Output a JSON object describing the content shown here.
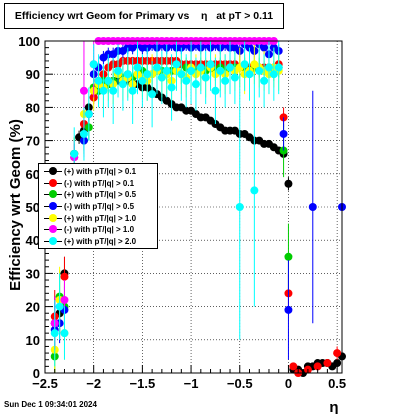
{
  "title": {
    "part1": "Efficiency wrt Geom for Primary vs",
    "symbol": "η",
    "part2": "at pT > 0.11"
  },
  "timestamp": "Sun Dec  1 09:34:01 2024",
  "chart_data": {
    "type": "scatter",
    "title": "Efficiency wrt Geom for Primary vs η at pT > 0.11",
    "xlabel": "η",
    "ylabel": "Efficiency wrt Geom (%)",
    "xlim": [
      -2.5,
      0.55
    ],
    "ylim": [
      0,
      100
    ],
    "xticks": [
      -2.5,
      -2,
      -1.5,
      -1,
      -0.5,
      0,
      0.5
    ],
    "xtick_labels": [
      "−2.5",
      "−2",
      "−1.5",
      "−1",
      "−0.5",
      "0",
      "0.5"
    ],
    "yticks": [
      0,
      10,
      20,
      30,
      40,
      50,
      60,
      70,
      80,
      90,
      100
    ],
    "ytick_labels": [
      "0",
      "10",
      "20",
      "30",
      "40",
      "50",
      "60",
      "70",
      "80",
      "90",
      "100"
    ],
    "grid": true,
    "legend_position": "middle-left",
    "series": [
      {
        "name": "(+) with pT/|q| > 0.1",
        "color": "#000000",
        "x": [
          -2.4,
          -2.35,
          -2.3,
          -2.25,
          -2.2,
          -2.15,
          -2.1,
          -2.05,
          -2.0,
          -1.95,
          -1.9,
          -1.85,
          -1.8,
          -1.75,
          -1.7,
          -1.65,
          -1.6,
          -1.55,
          -1.5,
          -1.45,
          -1.4,
          -1.35,
          -1.3,
          -1.25,
          -1.2,
          -1.15,
          -1.1,
          -1.05,
          -1.0,
          -0.95,
          -0.9,
          -0.85,
          -0.8,
          -0.75,
          -0.7,
          -0.65,
          -0.6,
          -0.55,
          -0.5,
          -0.45,
          -0.4,
          -0.35,
          -0.3,
          -0.25,
          -0.2,
          -0.15,
          -0.1,
          -0.05,
          0.0,
          0.05,
          0.1,
          0.15,
          0.2,
          0.25,
          0.3,
          0.35,
          0.4,
          0.45,
          0.5,
          0.55
        ],
        "y": [
          15,
          18,
          30,
          55,
          66,
          71,
          73,
          80,
          83,
          85,
          86,
          87,
          88,
          88,
          88,
          88,
          87,
          87,
          86,
          86,
          85,
          84,
          83,
          82,
          81,
          80,
          80,
          79,
          79,
          78,
          77,
          77,
          76,
          75,
          74,
          73,
          73,
          73,
          72,
          72,
          71,
          70,
          70,
          69,
          69,
          68,
          67,
          66,
          57,
          1,
          1,
          0,
          2,
          2,
          3,
          3,
          3,
          2,
          3,
          5
        ],
        "err": [
          8,
          6,
          5,
          4,
          3,
          2,
          2,
          1,
          1,
          1,
          1,
          1,
          1,
          1,
          1,
          1,
          1,
          1,
          1,
          1,
          1,
          1,
          1,
          1,
          1,
          1,
          1,
          1,
          1,
          1,
          1,
          1,
          1,
          1,
          1,
          1,
          1,
          1,
          1,
          1,
          1,
          1,
          1,
          1,
          1,
          1,
          1,
          1,
          2,
          1,
          1,
          1,
          1,
          1,
          1,
          1,
          1,
          1,
          1,
          2
        ]
      },
      {
        "name": "(-) with pT/|q| > 0.1",
        "color": "#ff0000",
        "x": [
          -2.4,
          -2.3,
          -2.2,
          -2.1,
          -2.0,
          -1.95,
          -1.9,
          -1.85,
          -1.8,
          -1.75,
          -1.7,
          -1.65,
          -1.6,
          -1.55,
          -1.5,
          -1.45,
          -1.4,
          -1.35,
          -1.3,
          -1.25,
          -1.2,
          -1.15,
          -1.1,
          -1.05,
          -1.0,
          -0.95,
          -0.9,
          -0.85,
          -0.8,
          -0.75,
          -0.7,
          -0.65,
          -0.6,
          -0.55,
          -0.5,
          -0.45,
          -0.4,
          -0.35,
          -0.3,
          -0.25,
          -0.2,
          -0.15,
          -0.1,
          -0.05,
          0.0,
          0.05,
          0.1,
          0.2,
          0.3,
          0.4,
          0.5
        ],
        "y": [
          17,
          29,
          62,
          75,
          83,
          88,
          90,
          92,
          93,
          93,
          94,
          94,
          94,
          94,
          94,
          94,
          94,
          94,
          94,
          94,
          94,
          94,
          93,
          93,
          93,
          93,
          93,
          93,
          93,
          93,
          93,
          93,
          93,
          93,
          92,
          92,
          92,
          92,
          92,
          92,
          92,
          92,
          93,
          77,
          24,
          2,
          0,
          1,
          2,
          3,
          6
        ],
        "err": [
          8,
          6,
          4,
          3,
          2,
          2,
          1,
          1,
          1,
          1,
          1,
          1,
          1,
          1,
          1,
          1,
          1,
          1,
          1,
          1,
          1,
          1,
          1,
          1,
          1,
          1,
          1,
          1,
          1,
          1,
          1,
          1,
          1,
          1,
          1,
          1,
          1,
          1,
          1,
          1,
          1,
          1,
          1,
          3,
          6,
          1,
          1,
          1,
          1,
          1,
          2
        ]
      },
      {
        "name": "(+) with pT/|q| > 0.5",
        "color": "#00cc00",
        "x": [
          -2.4,
          -2.35,
          -2.3,
          -2.2,
          -2.1,
          -2.05,
          -2.0,
          -1.95,
          -1.9,
          -1.85,
          -1.8,
          -1.75,
          -1.7,
          -1.65,
          -1.6,
          -1.55,
          -1.5,
          -1.45,
          -1.4,
          -1.35,
          -1.3,
          -1.25,
          -1.2,
          -1.15,
          -1.1,
          -1.05,
          -1.0,
          -0.95,
          -0.9,
          -0.85,
          -0.8,
          -0.75,
          -0.7,
          -0.65,
          -0.6,
          -0.55,
          -0.5,
          -0.45,
          -0.4,
          -0.35,
          -0.3,
          -0.25,
          -0.2,
          -0.15,
          -0.1,
          -0.05,
          0.0
        ],
        "y": [
          5,
          23,
          20,
          66,
          70,
          74,
          86,
          85,
          88,
          87,
          88,
          90,
          89,
          90,
          89,
          90,
          91,
          90,
          90,
          91,
          91,
          90,
          91,
          91,
          90,
          92,
          91,
          91,
          92,
          91,
          92,
          91,
          92,
          91,
          92,
          92,
          92,
          92,
          91,
          92,
          92,
          91,
          92,
          91,
          92,
          67,
          35
        ],
        "err": [
          10,
          8,
          6,
          5,
          4,
          4,
          3,
          3,
          3,
          3,
          3,
          3,
          3,
          3,
          3,
          3,
          3,
          3,
          3,
          3,
          3,
          3,
          3,
          3,
          3,
          3,
          3,
          3,
          3,
          3,
          3,
          3,
          3,
          3,
          3,
          3,
          3,
          3,
          3,
          3,
          3,
          3,
          3,
          3,
          3,
          8,
          10
        ]
      },
      {
        "name": "(-) with pT/|q| > 0.5",
        "color": "#0000ff",
        "x": [
          -2.4,
          -2.35,
          -2.3,
          -2.2,
          -2.1,
          -2.05,
          -2.0,
          -1.95,
          -1.9,
          -1.85,
          -1.8,
          -1.75,
          -1.7,
          -1.65,
          -1.6,
          -1.55,
          -1.5,
          -1.45,
          -1.4,
          -1.35,
          -1.3,
          -1.25,
          -1.2,
          -1.15,
          -1.1,
          -1.05,
          -1.0,
          -0.95,
          -0.9,
          -0.85,
          -0.8,
          -0.75,
          -0.7,
          -0.65,
          -0.6,
          -0.55,
          -0.5,
          -0.45,
          -0.4,
          -0.35,
          -0.3,
          -0.25,
          -0.2,
          -0.15,
          -0.1,
          -0.05,
          0.0,
          0.25,
          0.55
        ],
        "y": [
          13,
          15,
          19,
          65,
          70,
          78,
          90,
          92,
          95,
          96,
          96,
          97,
          97,
          98,
          98,
          99,
          98,
          98,
          99,
          98,
          99,
          98,
          99,
          98,
          98,
          99,
          98,
          99,
          98,
          99,
          98,
          99,
          98,
          99,
          98,
          98,
          97,
          99,
          98,
          97,
          99,
          98,
          96,
          98,
          97,
          72,
          19,
          50,
          50
        ],
        "err": [
          8,
          6,
          5,
          4,
          3,
          2,
          2,
          2,
          2,
          2,
          2,
          2,
          2,
          2,
          2,
          2,
          2,
          2,
          2,
          2,
          2,
          2,
          2,
          2,
          2,
          2,
          2,
          2,
          2,
          2,
          2,
          2,
          2,
          2,
          2,
          2,
          2,
          2,
          2,
          2,
          2,
          2,
          2,
          2,
          2,
          5,
          15,
          35,
          35
        ]
      },
      {
        "name": "(+) with pT/|q| > 1.0",
        "color": "#ffff00",
        "x": [
          -2.4,
          -2.35,
          -2.3,
          -2.2,
          -2.1,
          -2.0,
          -1.95,
          -1.9,
          -1.85,
          -1.8,
          -1.75,
          -1.7,
          -1.65,
          -1.6,
          -1.55,
          -1.5,
          -1.45,
          -1.4,
          -1.35,
          -1.3,
          -1.25,
          -1.2,
          -1.15,
          -1.1,
          -1.05,
          -1.0,
          -0.95,
          -0.9,
          -0.85,
          -0.8,
          -0.75,
          -0.7,
          -0.65,
          -0.6,
          -0.55,
          -0.5,
          -0.45,
          -0.4,
          -0.35,
          -0.3,
          -0.25,
          -0.2,
          -0.15,
          -0.1
        ],
        "y": [
          7,
          22,
          12,
          65,
          78,
          85,
          87,
          86,
          88,
          87,
          90,
          88,
          89,
          87,
          90,
          89,
          88,
          90,
          91,
          89,
          90,
          88,
          91,
          90,
          89,
          92,
          90,
          91,
          89,
          92,
          90,
          91,
          90,
          92,
          91,
          92,
          90,
          91,
          93,
          92,
          91,
          90,
          92,
          91
        ],
        "err": [
          12,
          10,
          8,
          6,
          6,
          6,
          6,
          6,
          6,
          6,
          6,
          6,
          6,
          6,
          6,
          6,
          6,
          6,
          6,
          6,
          6,
          6,
          6,
          6,
          6,
          6,
          6,
          6,
          6,
          6,
          6,
          6,
          6,
          6,
          6,
          6,
          6,
          6,
          6,
          6,
          6,
          6,
          6,
          6
        ]
      },
      {
        "name": "(-) with pT/|q| > 1.0",
        "color": "#ff00ff",
        "x": [
          -2.4,
          -2.3,
          -2.2,
          -2.1,
          -2.0,
          -1.95,
          -1.9,
          -1.85,
          -1.8,
          -1.75,
          -1.7,
          -1.65,
          -1.6,
          -1.55,
          -1.5,
          -1.45,
          -1.4,
          -1.35,
          -1.3,
          -1.25,
          -1.2,
          -1.15,
          -1.1,
          -1.05,
          -1.0,
          -0.95,
          -0.9,
          -0.85,
          -0.8,
          -0.75,
          -0.7,
          -0.65,
          -0.6,
          -0.55,
          -0.5,
          -0.45,
          -0.4,
          -0.35,
          -0.3,
          -0.25,
          -0.2,
          -0.15
        ],
        "y": [
          15,
          22,
          65,
          85,
          93,
          100,
          100,
          100,
          100,
          100,
          100,
          100,
          100,
          100,
          100,
          100,
          100,
          100,
          100,
          100,
          100,
          100,
          100,
          100,
          100,
          100,
          100,
          100,
          100,
          100,
          100,
          100,
          100,
          100,
          100,
          100,
          100,
          100,
          100,
          100,
          100,
          100
        ],
        "err": [
          8,
          6,
          5,
          20,
          10,
          1,
          1,
          1,
          1,
          1,
          1,
          1,
          1,
          1,
          1,
          1,
          1,
          1,
          1,
          1,
          1,
          1,
          1,
          1,
          1,
          1,
          1,
          1,
          1,
          1,
          1,
          1,
          1,
          1,
          1,
          1,
          1,
          1,
          1,
          1,
          1,
          1
        ]
      },
      {
        "name": "(+) with pT/|q| > 2.0",
        "color": "#00ffff",
        "x": [
          -2.4,
          -2.35,
          -2.3,
          -2.2,
          -2.1,
          -2.05,
          -2.0,
          -1.95,
          -1.9,
          -1.85,
          -1.8,
          -1.75,
          -1.7,
          -1.65,
          -1.6,
          -1.55,
          -1.5,
          -1.45,
          -1.4,
          -1.35,
          -1.3,
          -1.25,
          -1.2,
          -1.15,
          -1.1,
          -1.05,
          -1.0,
          -0.95,
          -0.9,
          -0.85,
          -0.8,
          -0.75,
          -0.7,
          -0.65,
          -0.6,
          -0.55,
          -0.5,
          -0.45,
          -0.4,
          -0.35,
          -0.3,
          -0.25,
          -0.2,
          -0.15,
          -0.1
        ],
        "y": [
          12,
          20,
          12,
          66,
          72,
          78,
          93,
          88,
          85,
          88,
          85,
          91,
          87,
          90,
          85,
          92,
          88,
          90,
          84,
          92,
          89,
          91,
          86,
          93,
          90,
          88,
          91,
          87,
          92,
          89,
          93,
          85,
          91,
          88,
          92,
          89,
          50,
          93,
          90,
          55,
          91,
          88,
          92,
          90,
          92
        ],
        "err": [
          10,
          10,
          8,
          8,
          8,
          8,
          6,
          8,
          8,
          8,
          10,
          8,
          8,
          8,
          10,
          8,
          8,
          8,
          10,
          8,
          8,
          8,
          10,
          8,
          8,
          8,
          10,
          8,
          8,
          8,
          8,
          10,
          8,
          8,
          8,
          8,
          40,
          8,
          8,
          35,
          8,
          8,
          8,
          8,
          8
        ]
      }
    ]
  }
}
